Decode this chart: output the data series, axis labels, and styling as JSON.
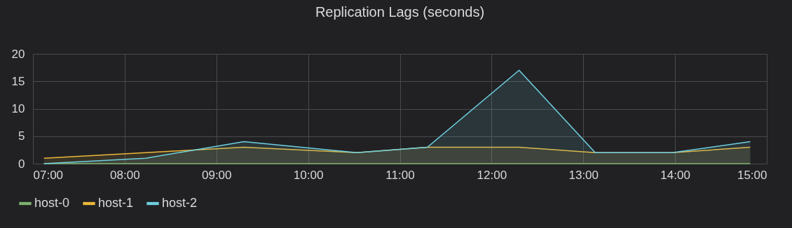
{
  "chart_data": {
    "type": "area",
    "title": "Replication Lags (seconds)",
    "x": [
      7.12,
      8.23,
      9.3,
      10.53,
      11.3,
      12.3,
      13.13,
      13.97,
      14.82
    ],
    "series": [
      {
        "name": "host-0",
        "type": "line",
        "color": "#7eb26d",
        "values": [
          0,
          0,
          0,
          0,
          0,
          0,
          0,
          0,
          0
        ]
      },
      {
        "name": "host-1",
        "color": "#eab839",
        "values": [
          1,
          2,
          3,
          2,
          3,
          3,
          2,
          2,
          3
        ]
      },
      {
        "name": "host-2",
        "color": "#6ed0e0",
        "values": [
          0,
          1,
          4,
          2,
          3,
          17,
          2,
          2,
          4
        ]
      }
    ],
    "xlim": [
      7,
      15
    ],
    "xticks": [
      {
        "value": 7,
        "label": "07:00"
      },
      {
        "value": 8,
        "label": "08:00"
      },
      {
        "value": 9,
        "label": "09:00"
      },
      {
        "value": 10,
        "label": "10:00"
      },
      {
        "value": 11,
        "label": "11:00"
      },
      {
        "value": 12,
        "label": "12:00"
      },
      {
        "value": 13,
        "label": "13:00"
      },
      {
        "value": 14,
        "label": "14:00"
      },
      {
        "value": 15,
        "label": "15:00"
      }
    ],
    "ylim": [
      0,
      20
    ],
    "yticks": [
      0,
      5,
      10,
      15,
      20
    ],
    "grid": true,
    "legend": "bottom left"
  }
}
